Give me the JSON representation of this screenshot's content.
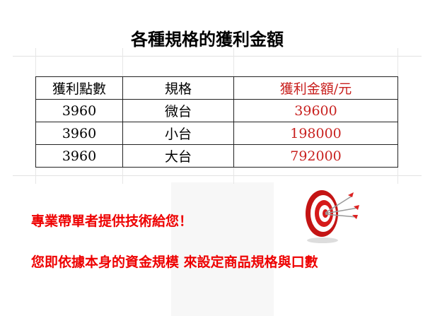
{
  "title": "各種規格的獲利金額",
  "table": {
    "headers": [
      "獲利點數",
      "規格",
      "獲利金額/元"
    ],
    "rows": [
      [
        "3960",
        "微台",
        "39600"
      ],
      [
        "3960",
        "小台",
        "198000"
      ],
      [
        "3960",
        "大台",
        "792000"
      ]
    ]
  },
  "messages": [
    "專業帶單者提供技術給您！",
    "您即依據本身的資金規模 來設定商品規格與口數"
  ],
  "icon": "target-arrows-icon",
  "colors": {
    "accent": "#e00000",
    "amount": "#c8201e"
  }
}
